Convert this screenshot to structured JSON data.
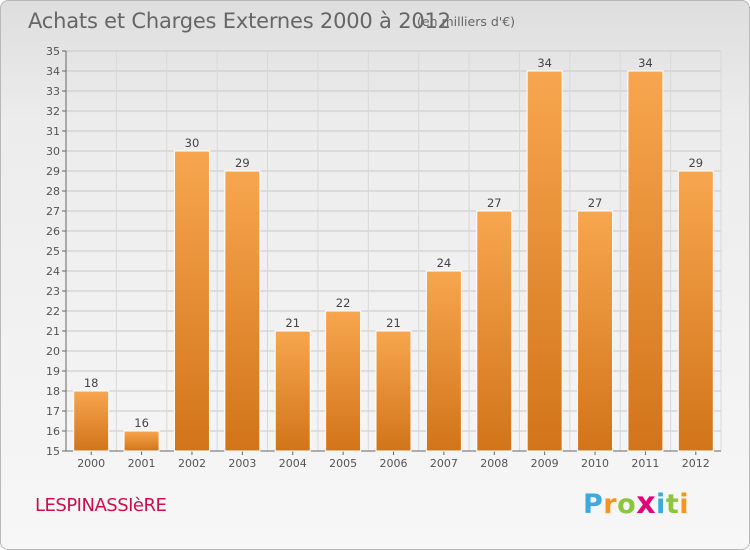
{
  "header": {
    "title": "Achats et Charges Externes 2000 à 2012",
    "subtitle": "(en milliers d'€)"
  },
  "footer": {
    "commune": "LESPINASSIèRE",
    "logo": {
      "letters": [
        "P",
        "r",
        "o",
        "x",
        "i",
        "t",
        "i"
      ],
      "colors": [
        "#3ea9dd",
        "#f7941d",
        "#8cc63f",
        "#e2007a",
        "#3ea9dd",
        "#8cc63f",
        "#f7941d"
      ]
    }
  },
  "colors": {
    "bar_light": "#f7a64f",
    "bar_dark": "#d27419",
    "grid": "#c8c8c8"
  },
  "chart_data": {
    "type": "bar",
    "title": "Achats et Charges Externes 2000 à 2012",
    "subtitle": "(en milliers d'€)",
    "xlabel": "",
    "ylabel": "",
    "categories": [
      "2000",
      "2001",
      "2002",
      "2003",
      "2004",
      "2005",
      "2006",
      "2007",
      "2008",
      "2009",
      "2010",
      "2011",
      "2012"
    ],
    "values": [
      18,
      16,
      30,
      29,
      21,
      22,
      21,
      24,
      27,
      34,
      27,
      34,
      29
    ],
    "ylim": [
      15,
      35
    ],
    "yticks": [
      "15",
      "16",
      "17",
      "18",
      "19",
      "20",
      "21",
      "22",
      "23",
      "24",
      "25",
      "26",
      "27",
      "28",
      "29",
      "30",
      "31",
      "32",
      "33",
      "34",
      "35"
    ],
    "grid": true
  }
}
